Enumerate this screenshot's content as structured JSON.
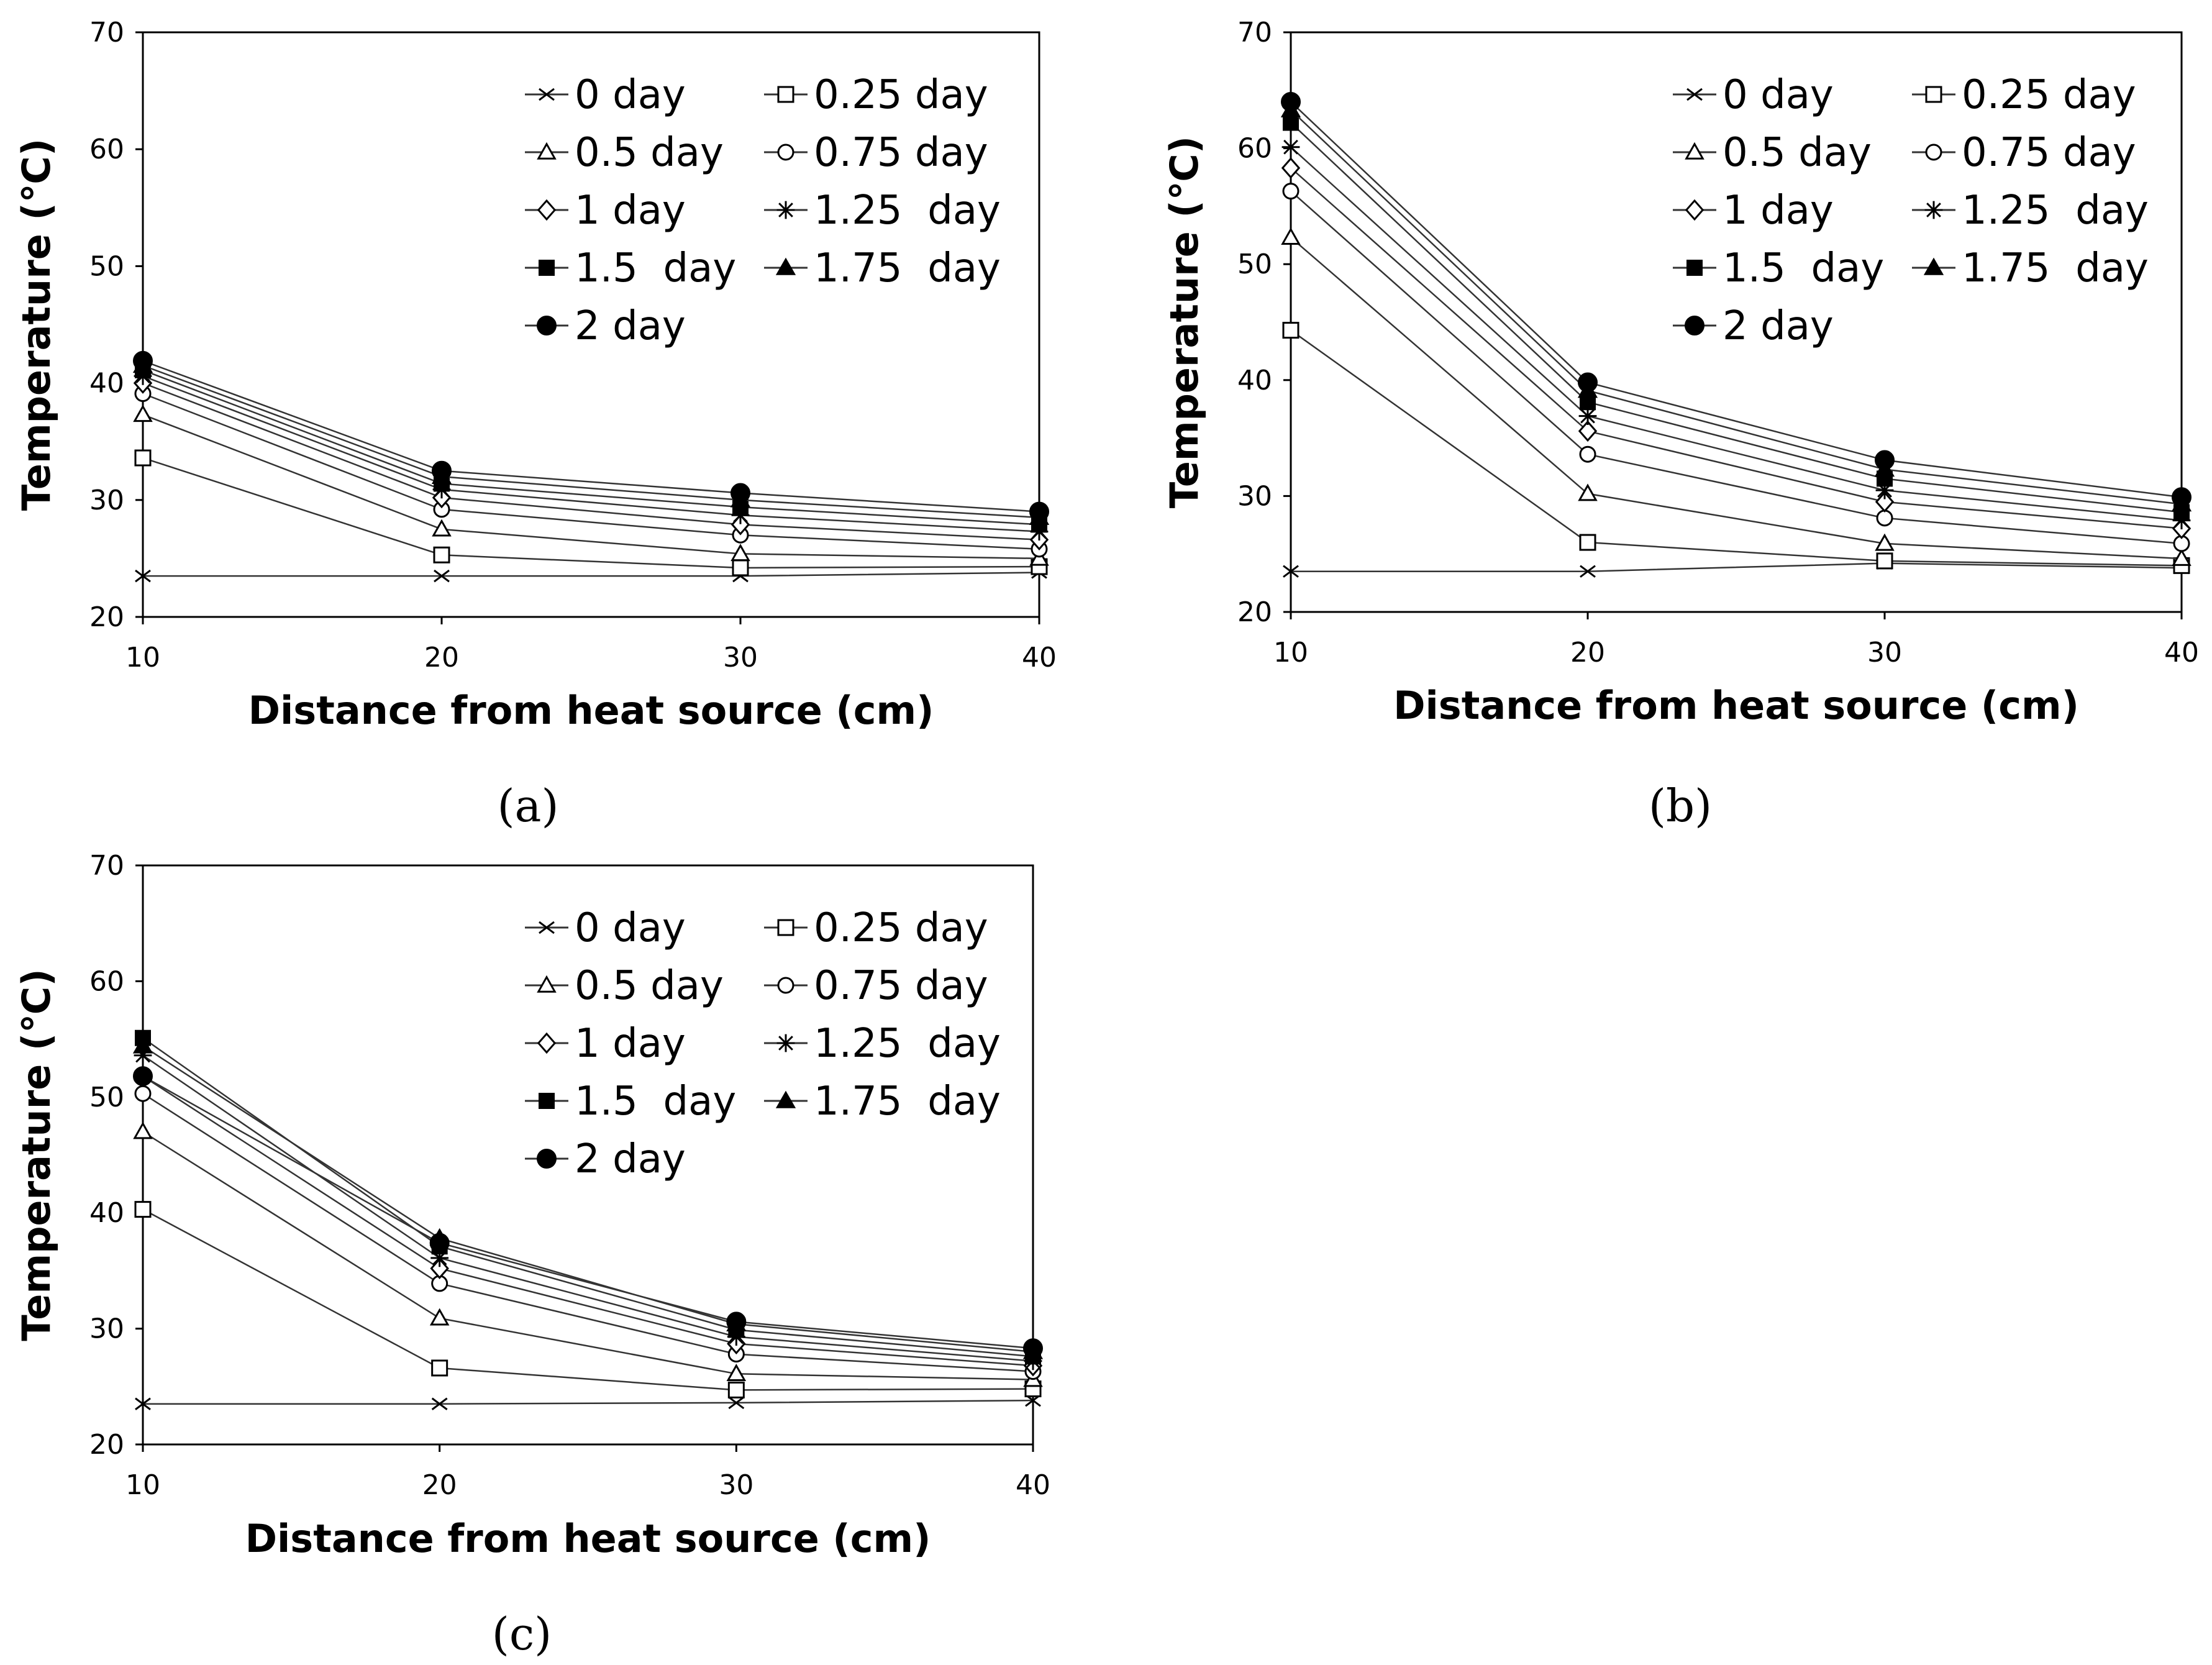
{
  "chart_data": [
    {
      "type": "line",
      "caption": "(a)",
      "xlabel": "Distance from heat source (cm)",
      "ylabel": "Temperature (℃)",
      "xlim": [
        10,
        40
      ],
      "ylim": [
        20,
        70
      ],
      "xticks": [
        10,
        20,
        30,
        40
      ],
      "yticks": [
        20,
        30,
        40,
        50,
        60,
        70
      ],
      "x": [
        10,
        20,
        30,
        40
      ],
      "legend_position": "top-right",
      "series": [
        {
          "name": "0 day",
          "marker": "x",
          "values": [
            23.5,
            23.5,
            23.5,
            23.8
          ]
        },
        {
          "name": "0.25 day",
          "marker": "square-open",
          "values": [
            33.6,
            25.3,
            24.2,
            24.3
          ]
        },
        {
          "name": "0.5 day",
          "marker": "triangle-open",
          "values": [
            37.3,
            27.5,
            25.4,
            25.0
          ]
        },
        {
          "name": "0.75 day",
          "marker": "circle-open",
          "values": [
            39.1,
            29.2,
            27.0,
            25.8
          ]
        },
        {
          "name": "1 day",
          "marker": "diamond-open",
          "values": [
            40.0,
            30.2,
            27.9,
            26.6
          ]
        },
        {
          "name": "1.25  day",
          "marker": "star",
          "values": [
            40.6,
            30.9,
            28.7,
            27.3
          ]
        },
        {
          "name": "1.5  day",
          "marker": "square-filled",
          "values": [
            41.1,
            31.4,
            29.4,
            27.9
          ]
        },
        {
          "name": "1.75  day",
          "marker": "triangle-filled",
          "values": [
            41.5,
            32.0,
            30.0,
            28.5
          ]
        },
        {
          "name": "2 day",
          "marker": "circle-filled",
          "values": [
            41.9,
            32.5,
            30.6,
            29.0
          ]
        }
      ]
    },
    {
      "type": "line",
      "caption": "(b)",
      "xlabel": "Distance from heat source (cm)",
      "ylabel": "Temperature (℃)",
      "xlim": [
        10,
        40
      ],
      "ylim": [
        20,
        70
      ],
      "xticks": [
        10,
        20,
        30,
        40
      ],
      "yticks": [
        20,
        30,
        40,
        50,
        60,
        70
      ],
      "x": [
        10,
        20,
        30,
        40
      ],
      "legend_position": "top-right",
      "series": [
        {
          "name": "0 day",
          "marker": "x",
          "values": [
            23.5,
            23.5,
            24.2,
            23.8
          ]
        },
        {
          "name": "0.25 day",
          "marker": "square-open",
          "values": [
            44.3,
            26.0,
            24.4,
            24.0
          ]
        },
        {
          "name": "0.5 day",
          "marker": "triangle-open",
          "values": [
            52.3,
            30.2,
            25.9,
            24.6
          ]
        },
        {
          "name": "0.75 day",
          "marker": "circle-open",
          "values": [
            56.3,
            33.6,
            28.1,
            25.9
          ]
        },
        {
          "name": "1 day",
          "marker": "diamond-open",
          "values": [
            58.3,
            35.6,
            29.5,
            27.2
          ]
        },
        {
          "name": "1.25  day",
          "marker": "star",
          "values": [
            60.1,
            36.9,
            30.5,
            27.9
          ]
        },
        {
          "name": "1.5  day",
          "marker": "square-filled",
          "values": [
            62.2,
            38.1,
            31.5,
            28.6
          ]
        },
        {
          "name": "1.75  day",
          "marker": "triangle-filled",
          "values": [
            63.3,
            39.1,
            32.3,
            29.3
          ]
        },
        {
          "name": "2 day",
          "marker": "circle-filled",
          "values": [
            64.0,
            39.8,
            33.1,
            29.9
          ]
        }
      ]
    },
    {
      "type": "line",
      "caption": "(c)",
      "xlabel": "Distance from heat source (cm)",
      "ylabel": "Temperature (℃)",
      "xlim": [
        10,
        40
      ],
      "ylim": [
        20,
        70
      ],
      "xticks": [
        10,
        20,
        30,
        40
      ],
      "yticks": [
        20,
        30,
        40,
        50,
        60,
        70
      ],
      "x": [
        10,
        20,
        30,
        40
      ],
      "legend_position": "top-right",
      "series": [
        {
          "name": "0 day",
          "marker": "x",
          "values": [
            23.5,
            23.5,
            23.6,
            23.8
          ]
        },
        {
          "name": "0.25 day",
          "marker": "square-open",
          "values": [
            40.3,
            26.6,
            24.7,
            24.8
          ]
        },
        {
          "name": "0.5 day",
          "marker": "triangle-open",
          "values": [
            47.0,
            30.9,
            26.1,
            25.6
          ]
        },
        {
          "name": "0.75 day",
          "marker": "circle-open",
          "values": [
            50.3,
            33.9,
            27.8,
            26.3
          ]
        },
        {
          "name": "1 day",
          "marker": "diamond-open",
          "values": [
            51.8,
            35.2,
            28.7,
            26.8
          ]
        },
        {
          "name": "1.25  day",
          "marker": "star",
          "values": [
            53.6,
            36.1,
            29.3,
            27.2
          ]
        },
        {
          "name": "1.5  day",
          "marker": "square-filled",
          "values": [
            55.1,
            37.1,
            29.9,
            27.6
          ]
        },
        {
          "name": "1.75  day",
          "marker": "triangle-filled",
          "values": [
            54.4,
            37.8,
            30.4,
            28.0
          ]
        },
        {
          "name": "2 day",
          "marker": "circle-filled",
          "values": [
            51.8,
            37.4,
            30.6,
            28.3
          ]
        }
      ]
    }
  ]
}
